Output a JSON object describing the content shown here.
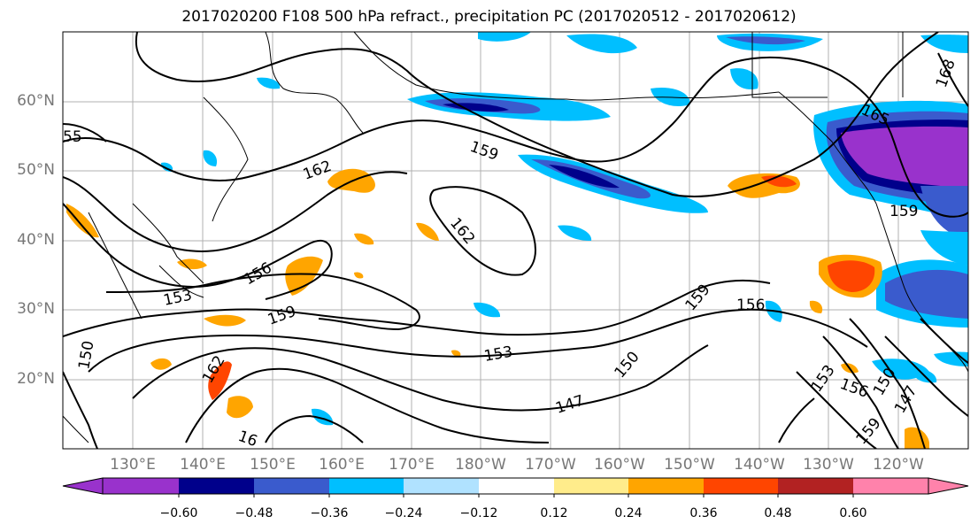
{
  "title": "2017020200 F108 500 hPa refract., precipitation PC (2017020512 - 2017020612)",
  "lat_labels": [
    "60°N",
    "50°N",
    "40°N",
    "30°N",
    "20°N"
  ],
  "lon_labels": [
    "130°E",
    "140°E",
    "150°E",
    "160°E",
    "170°E",
    "180°W",
    "170°W",
    "160°W",
    "150°W",
    "140°W",
    "130°W",
    "120°W"
  ],
  "colorbar": {
    "ticks": [
      "−0.60",
      "−0.48",
      "−0.36",
      "−0.24",
      "−0.12",
      "0.12",
      "0.24",
      "0.36",
      "0.48",
      "0.60"
    ],
    "colors": [
      "#9932CC",
      "#00008B",
      "#3A5BCD",
      "#00BFFF",
      "#B0E2FF",
      "#FFFFFF",
      "#FFEC8B",
      "#FFA500",
      "#FF4500",
      "#B22222",
      "#FF82AB"
    ]
  },
  "contour_labels": [
    "147",
    "150",
    "153",
    "156",
    "159",
    "162",
    "165",
    "168",
    "16",
    "55"
  ]
}
